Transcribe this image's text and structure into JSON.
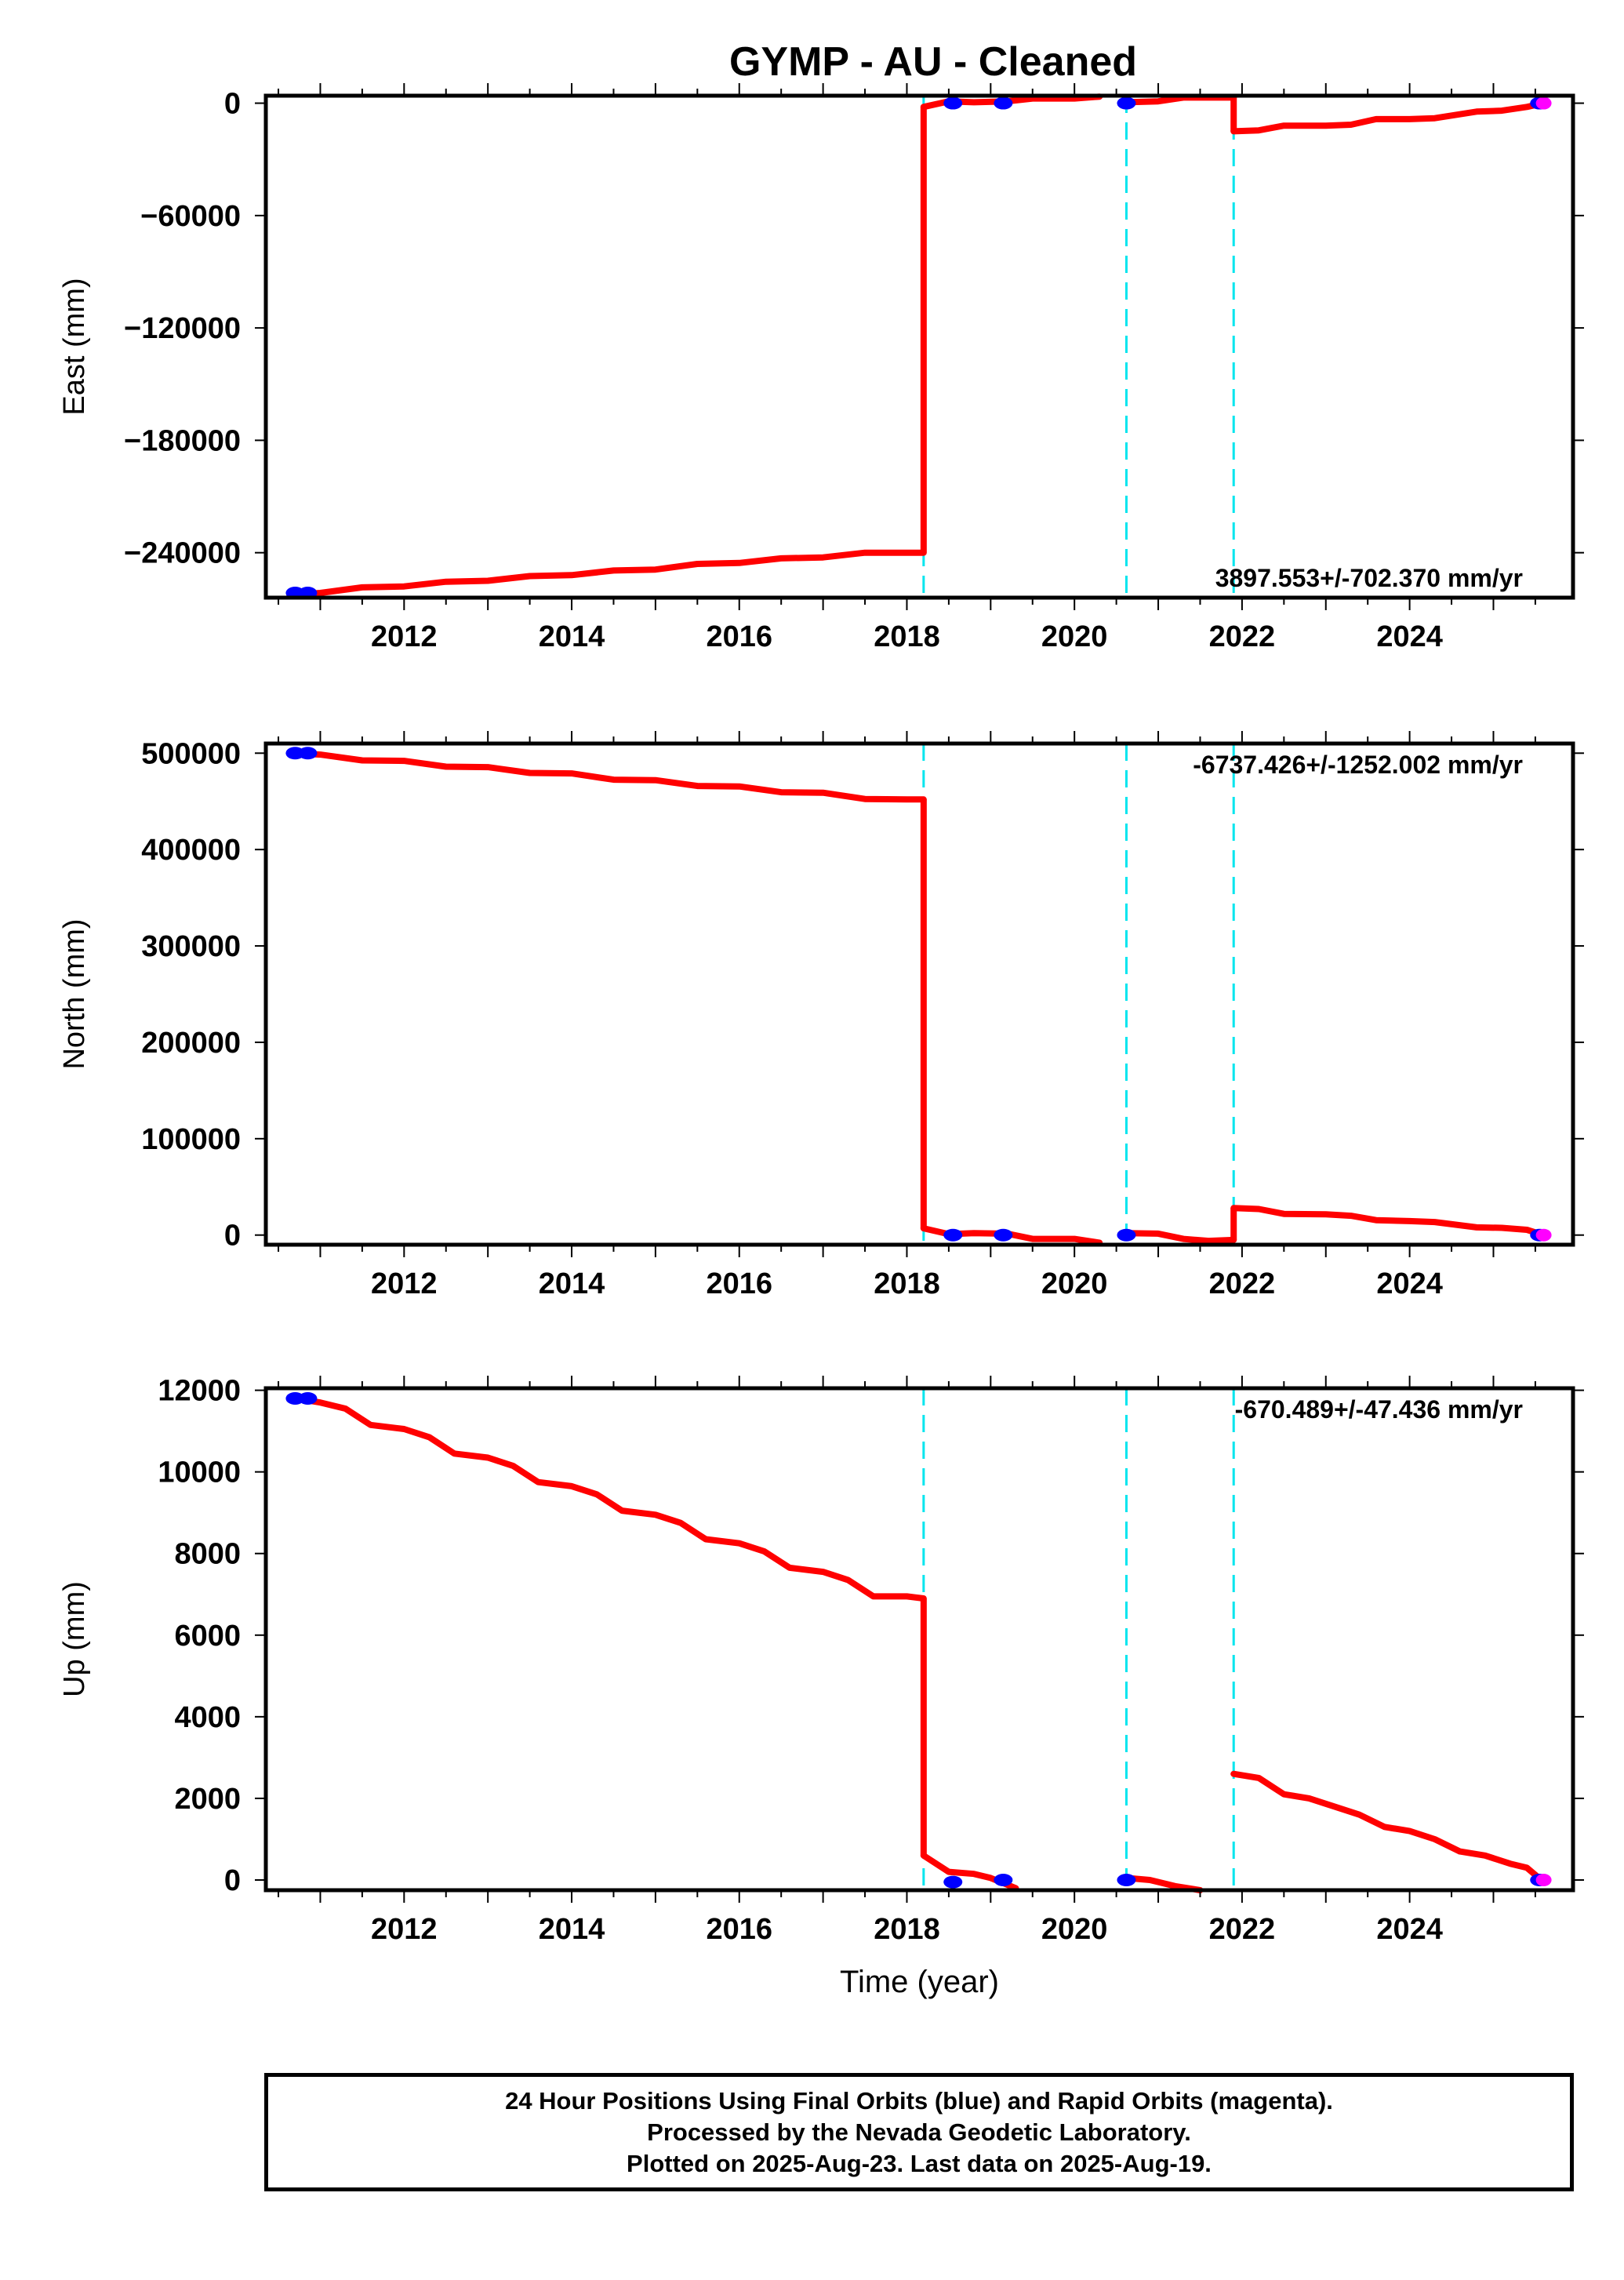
{
  "title": "GYMP  - AU - Cleaned",
  "colors": {
    "model_line": "#ff0000",
    "final_orbits": "#0000ff",
    "rapid_orbits": "#ff00ff",
    "event_line": "#00e5ee",
    "axes": "#000000"
  },
  "footer": {
    "line1": "24 Hour Positions Using Final Orbits (blue) and Rapid Orbits (magenta).",
    "line2": "Processed by the Nevada Geodetic Laboratory.",
    "line3": "Plotted on 2025-Aug-23. Last data on 2025-Aug-19."
  },
  "chart_data": [
    {
      "type": "line",
      "panel": "east",
      "ylabel": "East (mm)",
      "xlabel": "",
      "xlim": [
        2010.35,
        2025.95
      ],
      "ylim": [
        -264000,
        4000
      ],
      "xticks": [
        2012,
        2014,
        2016,
        2018,
        2020,
        2022,
        2024
      ],
      "yticks": [
        0,
        -60000,
        -120000,
        -180000,
        -240000
      ],
      "yticklabels": [
        "0",
        "−60000",
        "−120000",
        "−180000",
        "−240000"
      ],
      "rate_label": "3897.553+/-702.370 mm/yr",
      "rate_label_position": "bottom-right",
      "event_lines": [
        2018.2,
        2020.62,
        2021.9
      ],
      "series": [
        {
          "segment": 1,
          "x": [
            2010.7,
            2011.0,
            2011.5,
            2012.0,
            2012.5,
            2013.0,
            2013.5,
            2014.0,
            2014.5,
            2015.0,
            2015.5,
            2016.0,
            2016.5,
            2017.0,
            2017.5,
            2018.0,
            2018.2
          ],
          "y": [
            -262500,
            -261500,
            -258500,
            -258000,
            -255500,
            -255000,
            -252500,
            -252000,
            -249500,
            -249000,
            -246000,
            -245500,
            -243000,
            -242500,
            -240000,
            -240000,
            -240000
          ]
        },
        {
          "segment": 2,
          "x": [
            2018.2,
            2018.5,
            2018.8,
            2019.2,
            2019.5,
            2020.0,
            2020.3
          ],
          "y": [
            -2000,
            1000,
            500,
            1000,
            2500,
            2500,
            3500
          ]
        },
        {
          "segment": 3,
          "x": [
            2020.62,
            2021.0,
            2021.3,
            2021.6,
            2021.9
          ],
          "y": [
            500,
            1000,
            3000,
            3000,
            3000
          ]
        },
        {
          "segment": 4,
          "x": [
            2021.9,
            2022.2,
            2022.5,
            2023.0,
            2023.3,
            2023.6,
            2024.0,
            2024.3,
            2024.8,
            2025.1,
            2025.4,
            2025.6
          ],
          "y": [
            -15000,
            -14500,
            -12000,
            -12000,
            -11500,
            -8500,
            -8500,
            -8000,
            -4500,
            -4000,
            -2000,
            0
          ]
        }
      ],
      "final_orbits": [
        [
          2010.7,
          -261500
        ],
        [
          2010.85,
          -261500
        ],
        [
          2018.55,
          0
        ],
        [
          2019.15,
          0
        ],
        [
          2020.62,
          0
        ],
        [
          2025.55,
          0
        ]
      ],
      "rapid_orbits": [
        [
          2025.6,
          0
        ]
      ]
    },
    {
      "type": "line",
      "panel": "north",
      "ylabel": "North (mm)",
      "xlabel": "",
      "xlim": [
        2010.35,
        2025.95
      ],
      "ylim": [
        -10000,
        510000
      ],
      "xticks": [
        2012,
        2014,
        2016,
        2018,
        2020,
        2022,
        2024
      ],
      "yticks": [
        0,
        100000,
        200000,
        300000,
        400000,
        500000
      ],
      "yticklabels": [
        "0",
        "100000",
        "200000",
        "300000",
        "400000",
        "500000"
      ],
      "rate_label": "-6737.426+/-1252.002 mm/yr",
      "rate_label_position": "top-right",
      "event_lines": [
        2018.2,
        2020.62,
        2021.9
      ],
      "series": [
        {
          "segment": 1,
          "x": [
            2010.7,
            2011.0,
            2011.5,
            2012.0,
            2012.5,
            2013.0,
            2013.5,
            2014.0,
            2014.5,
            2015.0,
            2015.5,
            2016.0,
            2016.5,
            2017.0,
            2017.5,
            2018.0,
            2018.2
          ],
          "y": [
            500000,
            498500,
            492500,
            492000,
            486000,
            485500,
            479500,
            479000,
            472500,
            472000,
            466000,
            465500,
            459500,
            459000,
            452500,
            452000,
            452000
          ]
        },
        {
          "segment": 2,
          "x": [
            2018.2,
            2018.5,
            2018.8,
            2019.2,
            2019.5,
            2020.0,
            2020.3
          ],
          "y": [
            7000,
            1000,
            2000,
            1500,
            -4000,
            -4000,
            -8000
          ]
        },
        {
          "segment": 3,
          "x": [
            2020.62,
            2021.0,
            2021.3,
            2021.6,
            2021.9
          ],
          "y": [
            2000,
            1500,
            -4000,
            -6000,
            -5000
          ]
        },
        {
          "segment": 4,
          "x": [
            2021.9,
            2022.2,
            2022.5,
            2023.0,
            2023.3,
            2023.6,
            2024.0,
            2024.3,
            2024.8,
            2025.1,
            2025.4,
            2025.6
          ],
          "y": [
            28000,
            27000,
            22000,
            21500,
            20000,
            15500,
            14500,
            13500,
            8000,
            7500,
            5500,
            0
          ]
        }
      ],
      "final_orbits": [
        [
          2010.7,
          500000
        ],
        [
          2010.85,
          500000
        ],
        [
          2018.55,
          0
        ],
        [
          2019.15,
          0
        ],
        [
          2020.62,
          0
        ],
        [
          2025.55,
          0
        ]
      ],
      "rapid_orbits": [
        [
          2025.6,
          0
        ]
      ]
    },
    {
      "type": "line",
      "panel": "up",
      "ylabel": "Up (mm)",
      "xlabel": "Time (year)",
      "xlim": [
        2010.35,
        2025.95
      ],
      "ylim": [
        -250,
        12050
      ],
      "xticks": [
        2012,
        2014,
        2016,
        2018,
        2020,
        2022,
        2024
      ],
      "yticks": [
        0,
        2000,
        4000,
        6000,
        8000,
        10000,
        12000
      ],
      "yticklabels": [
        "0",
        "2000",
        "4000",
        "6000",
        "8000",
        "10000",
        "12000"
      ],
      "rate_label": "-670.489+/-47.436 mm/yr",
      "rate_label_position": "top-right",
      "event_lines": [
        2018.2,
        2020.62,
        2021.9
      ],
      "series": [
        {
          "segment": 1,
          "x": [
            2010.7,
            2011.0,
            2011.3,
            2011.6,
            2012.0,
            2012.3,
            2012.6,
            2013.0,
            2013.3,
            2013.6,
            2014.0,
            2014.3,
            2014.6,
            2015.0,
            2015.3,
            2015.6,
            2016.0,
            2016.3,
            2016.6,
            2017.0,
            2017.3,
            2017.6,
            2018.0,
            2018.2
          ],
          "y": [
            11800,
            11700,
            11550,
            11150,
            11050,
            10850,
            10450,
            10350,
            10150,
            9750,
            9650,
            9450,
            9050,
            8950,
            8750,
            8350,
            8250,
            8050,
            7650,
            7550,
            7350,
            6950,
            6950,
            6900
          ]
        },
        {
          "segment": 2,
          "x": [
            2018.2,
            2018.5,
            2018.8,
            2019.0,
            2019.3
          ],
          "y": [
            600,
            200,
            150,
            50,
            -200
          ]
        },
        {
          "segment": 3,
          "x": [
            2020.62,
            2020.9,
            2021.2,
            2021.5
          ],
          "y": [
            50,
            0,
            -150,
            -250
          ]
        },
        {
          "segment": 4,
          "x": [
            2021.9,
            2022.2,
            2022.5,
            2022.8,
            2023.1,
            2023.4,
            2023.7,
            2024.0,
            2024.3,
            2024.6,
            2024.9,
            2025.2,
            2025.4,
            2025.6
          ],
          "y": [
            2600,
            2500,
            2100,
            2000,
            1800,
            1600,
            1300,
            1200,
            1000,
            700,
            600,
            400,
            300,
            -50
          ]
        }
      ],
      "final_orbits": [
        [
          2010.7,
          11800
        ],
        [
          2010.85,
          11800
        ],
        [
          2018.55,
          -50
        ],
        [
          2019.15,
          0
        ],
        [
          2020.62,
          0
        ],
        [
          2025.55,
          0
        ]
      ],
      "rapid_orbits": [
        [
          2025.6,
          0
        ]
      ]
    }
  ]
}
